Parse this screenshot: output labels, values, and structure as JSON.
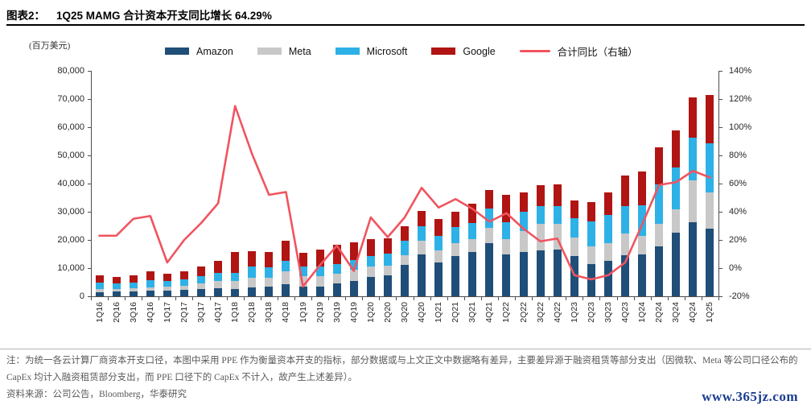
{
  "header": {
    "tag": "图表2：",
    "title": "1Q25 MAMG 合计资本开支同比增长 64.29%"
  },
  "chart_data": {
    "type": "bar",
    "stacked": true,
    "unit_label": "(百万美元)",
    "legend_position": "top",
    "categories": [
      "1Q16",
      "2Q16",
      "3Q16",
      "4Q16",
      "1Q17",
      "2Q17",
      "3Q17",
      "4Q17",
      "1Q18",
      "2Q18",
      "3Q18",
      "4Q18",
      "1Q19",
      "2Q19",
      "3Q19",
      "4Q19",
      "1Q20",
      "2Q20",
      "3Q20",
      "4Q20",
      "1Q21",
      "2Q21",
      "3Q21",
      "4Q21",
      "1Q22",
      "2Q22",
      "3Q22",
      "4Q22",
      "1Q23",
      "2Q23",
      "3Q23",
      "4Q23",
      "1Q24",
      "2Q24",
      "3Q24",
      "4Q24",
      "1Q25"
    ],
    "series": [
      {
        "name": "Amazon",
        "color": "#1f4e79",
        "values": [
          1500,
          1600,
          1700,
          1900,
          2100,
          2300,
          2700,
          3000,
          2600,
          3100,
          3400,
          4400,
          3300,
          3400,
          4700,
          5400,
          6800,
          7500,
          11100,
          14800,
          12100,
          14300,
          15700,
          19000,
          15000,
          15700,
          16400,
          16600,
          14200,
          11500,
          12500,
          14600,
          14900,
          17600,
          22600,
          26300,
          24000
        ]
      },
      {
        "name": "Meta",
        "color": "#c8c8c8",
        "values": [
          1100,
          1000,
          1100,
          1300,
          1300,
          1400,
          1800,
          2300,
          2800,
          3500,
          3300,
          4400,
          3800,
          3800,
          3400,
          4100,
          3800,
          3400,
          3600,
          4800,
          4300,
          4500,
          4600,
          5400,
          5400,
          7500,
          9400,
          9200,
          6800,
          6100,
          6500,
          7600,
          6400,
          8200,
          8300,
          14800,
          12900
        ]
      },
      {
        "name": "Microsoft",
        "color": "#2eb1e6",
        "values": [
          2300,
          2100,
          2100,
          2500,
          2100,
          2300,
          2700,
          2900,
          3000,
          3900,
          3700,
          3900,
          3600,
          3300,
          3400,
          3500,
          3800,
          4200,
          4900,
          5300,
          5100,
          5800,
          5800,
          6800,
          5900,
          6900,
          6300,
          6300,
          6600,
          8900,
          9900,
          9700,
          11000,
          13900,
          14900,
          15100,
          17500
        ]
      },
      {
        "name": "Google",
        "color": "#b01513",
        "values": [
          2400,
          2100,
          2500,
          3100,
          2500,
          2800,
          3500,
          4300,
          7300,
          5500,
          5300,
          7100,
          4600,
          6100,
          6700,
          6100,
          6000,
          5400,
          5400,
          5500,
          5900,
          5500,
          6800,
          6400,
          9800,
          6800,
          7300,
          7600,
          6300,
          6900,
          8100,
          11000,
          12000,
          13200,
          13100,
          14300,
          17000
        ]
      }
    ],
    "line_series": {
      "name": "合计同比（右轴）",
      "color": "#f0545f",
      "axis": "right",
      "values": [
        23,
        23,
        35,
        37,
        4,
        20,
        32,
        46,
        115,
        81,
        52,
        54,
        -13,
        2,
        16,
        -2,
        36,
        22,
        36,
        57,
        43,
        49,
        42,
        33,
        39,
        28,
        19,
        21,
        -5,
        -8,
        -5,
        4,
        31,
        59,
        61,
        69,
        64.29
      ]
    },
    "left_axis": {
      "min": 0,
      "max": 80000,
      "step": 10000,
      "tick_labels": [
        "80,000",
        "70,000",
        "60,000",
        "50,000",
        "40,000",
        "30,000",
        "20,000",
        "10,000",
        "0"
      ]
    },
    "right_axis": {
      "min": -20,
      "max": 140,
      "step": 20,
      "tick_labels": [
        "140%",
        "120%",
        "100%",
        "80%",
        "60%",
        "40%",
        "20%",
        "0%",
        "-20%"
      ]
    }
  },
  "footer": {
    "note": "注：为统一各云计算厂商资本开支口径，本图中采用 PPE 作为衡量资本开支的指标，部分数据或与上文正文中数据略有差异，主要差异源于融资租赁等部分支出（因微软、Meta 等公司口径公布的 CapEx 均计入融资租赁部分支出，而 PPE 口径下的 CapEx 不计入，故产生上述差异）。",
    "source": "资料来源：公司公告，Bloomberg，华泰研究",
    "watermark": "www.365jz.com"
  }
}
